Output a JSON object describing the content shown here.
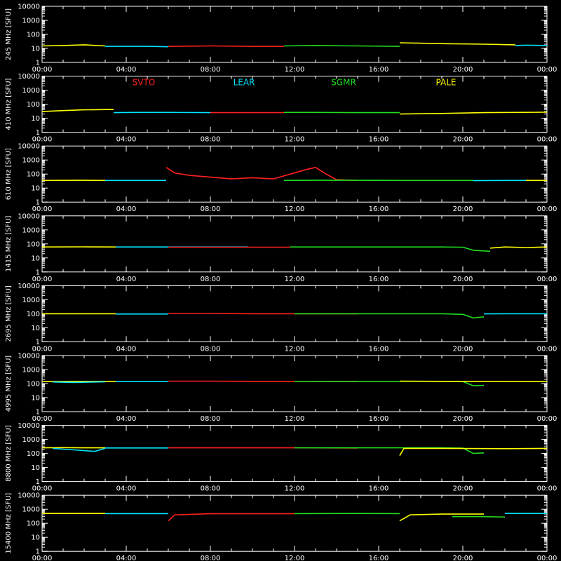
{
  "chart_data": {
    "type": "line",
    "y_scale": "log",
    "ylim": [
      1,
      10000
    ],
    "y_ticks": [
      "1",
      "10",
      "100",
      "1000",
      "10000"
    ],
    "xlim": [
      "00:00",
      "24:00"
    ],
    "x_ticks": [
      "00:00",
      "04:00",
      "08:00",
      "12:00",
      "16:00",
      "20:00",
      "00:00"
    ],
    "legend": [
      {
        "name": "SVTO",
        "color": "#ff2020"
      },
      {
        "name": "LEAR",
        "color": "#00e5ff"
      },
      {
        "name": "SGMR",
        "color": "#20dd20"
      },
      {
        "name": "PALE",
        "color": "#ffff00"
      }
    ],
    "panels": [
      {
        "ylabel": "245 MHz [SFU]",
        "series": [
          {
            "name": "PALE",
            "x": [
              0,
              1,
              2,
              3
            ],
            "y": [
              15,
              16,
              18,
              15
            ]
          },
          {
            "name": "LEAR",
            "x": [
              3.0,
              4.0,
              5.0,
              6.0
            ],
            "y": [
              14,
              14,
              14,
              13
            ]
          },
          {
            "name": "SVTO",
            "x": [
              6.0,
              8.0,
              10.0,
              11.5
            ],
            "y": [
              14,
              15,
              14,
              14
            ]
          },
          {
            "name": "SGMR",
            "x": [
              11.5,
              13.0,
              15.0,
              17.0
            ],
            "y": [
              15,
              16,
              15,
              14
            ]
          },
          {
            "name": "PALE",
            "x": [
              17.0,
              19.0,
              21.0,
              22.5
            ],
            "y": [
              25,
              22,
              20,
              18
            ]
          },
          {
            "name": "LEAR",
            "x": [
              22.5,
              23.0,
              24.0
            ],
            "y": [
              16,
              17,
              16
            ]
          }
        ]
      },
      {
        "ylabel": "410 MHz [SFU]",
        "series": [
          {
            "name": "PALE",
            "x": [
              0,
              1,
              2,
              3.4
            ],
            "y": [
              30,
              35,
              40,
              42
            ]
          },
          {
            "name": "LEAR",
            "x": [
              3.4,
              4.5,
              6.0,
              8.0
            ],
            "y": [
              25,
              26,
              26,
              25
            ]
          },
          {
            "name": "SVTO",
            "x": [
              8.0,
              10.0,
              11.5
            ],
            "y": [
              25,
              25,
              25
            ]
          },
          {
            "name": "SGMR",
            "x": [
              11.5,
              13.0,
              15.0,
              17.0
            ],
            "y": [
              26,
              26,
              25,
              25
            ]
          },
          {
            "name": "PALE",
            "x": [
              17.0,
              19.0,
              21.0,
              24.0
            ],
            "y": [
              20,
              22,
              25,
              27
            ]
          }
        ]
      },
      {
        "ylabel": "610 MHz [SFU]",
        "series": [
          {
            "name": "PALE",
            "x": [
              0,
              2,
              3.0
            ],
            "y": [
              35,
              36,
              35
            ]
          },
          {
            "name": "LEAR",
            "x": [
              3.0,
              4.5,
              5.9
            ],
            "y": [
              35,
              35,
              35
            ]
          },
          {
            "name": "SVTO",
            "x": [
              5.9,
              6.3,
              7.0,
              8.0,
              9.0,
              10.0,
              11.0,
              12.5,
              13.0,
              13.5,
              14.0,
              15.0
            ],
            "y": [
              300,
              120,
              80,
              60,
              45,
              55,
              45,
              200,
              300,
              100,
              40,
              35
            ]
          },
          {
            "name": "SGMR",
            "x": [
              11.5,
              13.0,
              15.0,
              17.0,
              19.0,
              20.5
            ],
            "y": [
              35,
              36,
              36,
              35,
              35,
              35
            ]
          },
          {
            "name": "LEAR",
            "x": [
              20.5,
              22.0,
              23.0
            ],
            "y": [
              34,
              35,
              35
            ]
          },
          {
            "name": "PALE",
            "x": [
              23.0,
              24.0
            ],
            "y": [
              35,
              35
            ]
          }
        ]
      },
      {
        "ylabel": "1415 MHz [SFU]",
        "series": [
          {
            "name": "PALE",
            "x": [
              0,
              2,
              3.5
            ],
            "y": [
              60,
              62,
              60
            ]
          },
          {
            "name": "LEAR",
            "x": [
              3.5,
              5.0,
              6.0,
              8.0,
              9.8
            ],
            "y": [
              60,
              60,
              60,
              60,
              60
            ]
          },
          {
            "name": "SVTO",
            "x": [
              6.0,
              8.0,
              10.0,
              11.8
            ],
            "y": [
              58,
              58,
              58,
              58
            ]
          },
          {
            "name": "SGMR",
            "x": [
              11.8,
              13.0,
              15.0,
              17.0,
              19.0,
              20.0,
              20.5,
              21.3
            ],
            "y": [
              60,
              60,
              60,
              60,
              60,
              58,
              35,
              30
            ]
          },
          {
            "name": "PALE",
            "x": [
              21.3,
              22.0,
              23.0,
              24.0
            ],
            "y": [
              50,
              60,
              55,
              60
            ]
          }
        ]
      },
      {
        "ylabel": "2695 MHz [SFU]",
        "series": [
          {
            "name": "PALE",
            "x": [
              0,
              3.5
            ],
            "y": [
              100,
              100
            ]
          },
          {
            "name": "LEAR",
            "x": [
              3.5,
              5.0,
              6.0
            ],
            "y": [
              95,
              95,
              95
            ]
          },
          {
            "name": "SVTO",
            "x": [
              6.0,
              8.0,
              10.0,
              12.0,
              15.0
            ],
            "y": [
              105,
              105,
              100,
              100,
              98
            ]
          },
          {
            "name": "SGMR",
            "x": [
              12.0,
              14.0,
              17.0,
              19.0,
              20.0,
              20.5,
              21.0
            ],
            "y": [
              100,
              100,
              100,
              100,
              90,
              50,
              60
            ]
          },
          {
            "name": "LEAR",
            "x": [
              21.0,
              22.0,
              24.0
            ],
            "y": [
              98,
              100,
              100
            ]
          }
        ]
      },
      {
        "ylabel": "4995 MHz [SFU]",
        "series": [
          {
            "name": "PALE",
            "x": [
              0,
              3.5
            ],
            "y": [
              140,
              145
            ]
          },
          {
            "name": "LEAR",
            "x": [
              0.5,
              1.5,
              3.0
            ],
            "y": [
              130,
              120,
              135
            ]
          },
          {
            "name": "LEAR",
            "x": [
              3.5,
              6.0
            ],
            "y": [
              140,
              140
            ]
          },
          {
            "name": "SVTO",
            "x": [
              6.0,
              8.0,
              10.0,
              12.0,
              15.0
            ],
            "y": [
              150,
              150,
              145,
              145,
              140
            ]
          },
          {
            "name": "SGMR",
            "x": [
              12.0,
              15.0,
              17.0,
              19.0,
              20.0,
              20.5,
              21.0
            ],
            "y": [
              145,
              145,
              145,
              145,
              140,
              70,
              75
            ]
          },
          {
            "name": "PALE",
            "x": [
              17.0,
              19.0,
              21.0,
              24.0
            ],
            "y": [
              150,
              145,
              145,
              140
            ]
          }
        ]
      },
      {
        "ylabel": "8800 MHz [SFU]",
        "series": [
          {
            "name": "PALE",
            "x": [
              0,
              1,
              2,
              3
            ],
            "y": [
              250,
              260,
              250,
              250
            ]
          },
          {
            "name": "LEAR",
            "x": [
              0.5,
              1.5,
              2.5,
              3.0
            ],
            "y": [
              230,
              180,
              140,
              230
            ]
          },
          {
            "name": "LEAR",
            "x": [
              3.0,
              6.0
            ],
            "y": [
              245,
              245
            ]
          },
          {
            "name": "SVTO",
            "x": [
              6.0,
              8.0,
              10.0,
              12.0,
              15.0
            ],
            "y": [
              250,
              250,
              250,
              250,
              240
            ]
          },
          {
            "name": "SGMR",
            "x": [
              12.0,
              15.0,
              17.0,
              19.0,
              20.0,
              20.5,
              21.0
            ],
            "y": [
              250,
              250,
              250,
              250,
              240,
              100,
              110
            ]
          },
          {
            "name": "PALE",
            "x": [
              17.0,
              17.2,
              19.0,
              22.0,
              24.0
            ],
            "y": [
              70,
              230,
              230,
              220,
              230
            ]
          }
        ]
      },
      {
        "ylabel": "15400 MHz [SFU]",
        "series": [
          {
            "name": "PALE",
            "x": [
              0,
              3.0
            ],
            "y": [
              500,
              500
            ]
          },
          {
            "name": "LEAR",
            "x": [
              3.0,
              6.0
            ],
            "y": [
              490,
              490
            ]
          },
          {
            "name": "SVTO",
            "x": [
              6.0,
              6.3,
              8.0,
              10.0,
              12.0
            ],
            "y": [
              150,
              400,
              480,
              480,
              480
            ]
          },
          {
            "name": "SGMR",
            "x": [
              12.0,
              15.0,
              17.0
            ],
            "y": [
              490,
              500,
              490
            ]
          },
          {
            "name": "PALE",
            "x": [
              17.0,
              17.5,
              19.0,
              21.0
            ],
            "y": [
              150,
              400,
              450,
              450
            ]
          },
          {
            "name": "SGMR",
            "x": [
              19.5,
              21.0,
              22.0
            ],
            "y": [
              300,
              300,
              280
            ]
          },
          {
            "name": "LEAR",
            "x": [
              22.0,
              24.0
            ],
            "y": [
              500,
              500
            ]
          }
        ]
      }
    ]
  }
}
